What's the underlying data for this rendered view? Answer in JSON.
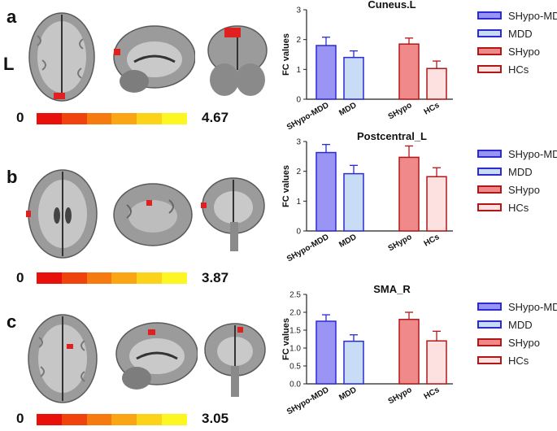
{
  "side_label": "L",
  "panels": [
    {
      "letter": "a",
      "scale_min": "0",
      "scale_max": "4.67"
    },
    {
      "letter": "b",
      "scale_min": "0",
      "scale_max": "3.87"
    },
    {
      "letter": "c",
      "scale_min": "0",
      "scale_max": "3.05"
    }
  ],
  "colors": {
    "colorbar": [
      "#e8100a",
      "#f0420c",
      "#f57a10",
      "#f9a514",
      "#fbd31a",
      "#fcf722"
    ],
    "series_fill": [
      "#9a94f4",
      "#c8dcf6",
      "#f08a8a",
      "#fde0e0"
    ],
    "series_edge": [
      "#2b2bd0",
      "#2b2bd0",
      "#b01818",
      "#b01818"
    ]
  },
  "legend": [
    "SHypo-MDD",
    "MDD",
    "SHypo",
    "HCs"
  ],
  "chart_data": [
    {
      "type": "bar",
      "title": "Cuneus.L",
      "ylabel": "FC values",
      "ylim": [
        0,
        3
      ],
      "yticks": [
        "0",
        "1",
        "2",
        "3"
      ],
      "categories": [
        "SHypo-MDD",
        "MDD",
        "SHypo",
        "HCs"
      ],
      "values": [
        1.8,
        1.4,
        1.85,
        1.03
      ],
      "errors": [
        0.28,
        0.22,
        0.2,
        0.25
      ]
    },
    {
      "type": "bar",
      "title": "Postcentral_L",
      "ylabel": "FC values",
      "ylim": [
        0,
        3
      ],
      "yticks": [
        "0",
        "1",
        "2",
        "3"
      ],
      "categories": [
        "SHypo-MDD",
        "MDD",
        "SHypo",
        "HCs"
      ],
      "values": [
        2.63,
        1.92,
        2.47,
        1.82
      ],
      "errors": [
        0.27,
        0.28,
        0.38,
        0.3
      ]
    },
    {
      "type": "bar",
      "title": "SMA_R",
      "ylabel": "FC values",
      "ylim": [
        0,
        2.5
      ],
      "yticks": [
        "0.0",
        "0.5",
        "1.0",
        "1.5",
        "2.0",
        "2.5"
      ],
      "categories": [
        "SHypo-MDD",
        "MDD",
        "SHypo",
        "HCs"
      ],
      "values": [
        1.75,
        1.19,
        1.8,
        1.2
      ],
      "errors": [
        0.18,
        0.18,
        0.2,
        0.27
      ]
    }
  ]
}
